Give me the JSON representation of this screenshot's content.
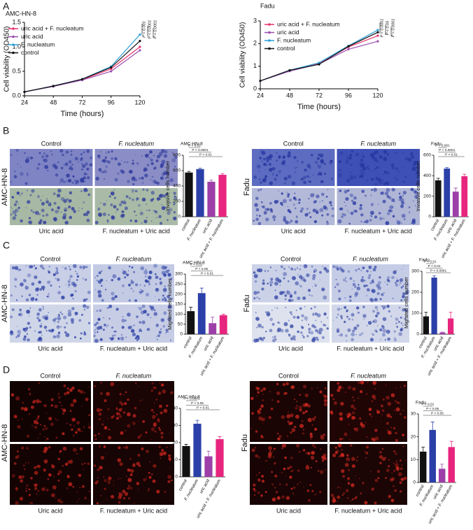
{
  "panel_labels": [
    "A",
    "B",
    "C",
    "D"
  ],
  "image_panels": [
    {
      "cell_line": "AMC-HN-8",
      "top": [
        "Control",
        "F. nucleatum"
      ],
      "bottom": [
        "Uric acid",
        "F. nucleatum + Uric acid"
      ]
    },
    {
      "cell_line": "Fadu",
      "top": [
        "Control",
        "F. nucleatum"
      ],
      "bottom": [
        "Uric acid",
        "F. nucleatum + Uric acid"
      ]
    },
    {
      "cell_line": "AMC-HN-8",
      "top": [
        "Control",
        "F. nucleatum"
      ],
      "bottom": [
        "Uric acid",
        "F. nucleatum + Uric acid"
      ]
    },
    {
      "cell_line": "Fadu",
      "top": [
        "Control",
        "F. nucleatum"
      ],
      "bottom": [
        "Uric acid",
        "F. nucleatum + Uric acid"
      ]
    },
    {
      "cell_line": "AMC-HN-8",
      "top": [
        "Control",
        "F. nucleatum"
      ],
      "bottom": [
        "Uric acid",
        "F. nucleatum + Uric acid"
      ]
    },
    {
      "cell_line": "Fadu",
      "top": [
        "Control",
        "F. nucleatum"
      ],
      "bottom": [
        "Uric acid",
        "F. nucleatum + Uric acid"
      ]
    }
  ],
  "chart_data": [
    {
      "type": "line",
      "title": "AMC-HN-8",
      "y_label": "Cell viability (OD450)",
      "x_label": "Time (hours)",
      "x": [
        24,
        48,
        72,
        96,
        120
      ],
      "xlim": [
        24,
        120
      ],
      "xticks": [
        24,
        48,
        72,
        96,
        120
      ],
      "ylim": [
        0,
        1.5
      ],
      "yticks": [
        {
          "value": 0,
          "label": "0.0"
        },
        {
          "value": 0.5,
          "label": "0.5"
        },
        {
          "value": 1,
          "label": "1.0"
        },
        {
          "value": 1.5,
          "label": "1.5"
        }
      ],
      "series": [
        {
          "name": "uric acid + F. nucleatum",
          "color": "#e8336b",
          "values": [
            0.08,
            0.2,
            0.33,
            0.55,
            1.0
          ]
        },
        {
          "name": "uric acid",
          "color": "#9b4fb0",
          "values": [
            0.08,
            0.19,
            0.32,
            0.5,
            0.93
          ]
        },
        {
          "name": "F. nucleatum",
          "color": "#2a9fd6",
          "values": [
            0.08,
            0.2,
            0.34,
            0.6,
            1.25
          ]
        },
        {
          "name": "control",
          "color": "#111111",
          "values": [
            0.08,
            0.2,
            0.34,
            0.58,
            1.12
          ]
        }
      ],
      "annotations": [
        "P < 0.001",
        "P < 0.0001",
        "P < 0.0001"
      ]
    },
    {
      "type": "line",
      "title": "Fadu",
      "y_label": "Cell viability (OD450)",
      "x_label": "Time (hours)",
      "x": [
        24,
        48,
        72,
        96,
        120
      ],
      "xlim": [
        24,
        120
      ],
      "xticks": [
        24,
        48,
        72,
        96,
        120
      ],
      "ylim": [
        0,
        3
      ],
      "yticks": [
        0,
        1,
        2,
        3
      ],
      "series": [
        {
          "name": "uric acid + F. nucleatum",
          "color": "#e8336b",
          "values": [
            0.35,
            0.8,
            1.12,
            1.85,
            2.35
          ]
        },
        {
          "name": "uric acid",
          "color": "#9b4fb0",
          "values": [
            0.35,
            0.78,
            1.1,
            1.75,
            2.1
          ]
        },
        {
          "name": "F. nucleatum",
          "color": "#2a9fd6",
          "values": [
            0.35,
            0.82,
            1.15,
            1.9,
            2.6
          ]
        },
        {
          "name": "control",
          "color": "#111111",
          "values": [
            0.35,
            0.82,
            1.08,
            1.88,
            2.5
          ]
        }
      ],
      "annotations": [
        "P < 0.0001",
        "P < 0.05",
        "P < 0.0001"
      ]
    },
    {
      "type": "bar",
      "title": "AMC-HN-8",
      "y_label": "Invasive cells number",
      "categories": [
        "control",
        "F. nucleatum",
        "uric acid",
        "uric acid + F. nucleatum"
      ],
      "values": [
        575,
        620,
        455,
        545
      ],
      "errors": [
        15,
        12,
        20,
        15
      ],
      "colors": [
        "#111111",
        "#2b3fa8",
        "#9d3fa8",
        "#e7257e"
      ],
      "ylim": [
        0,
        800
      ],
      "yticks": [
        0,
        200,
        400,
        600,
        800
      ],
      "annotations": [
        "P < 0.01",
        "P < 0.0001",
        "P < 0.01"
      ]
    },
    {
      "type": "bar",
      "title": "Fadu",
      "y_label": "Invasive cells number",
      "categories": [
        "control",
        "F. nucleatum",
        "uric acid",
        "uric acid + F. nucleatum"
      ],
      "values": [
        355,
        470,
        245,
        395
      ],
      "errors": [
        20,
        10,
        35,
        20
      ],
      "colors": [
        "#111111",
        "#2b3fa8",
        "#9d3fa8",
        "#e7257e"
      ],
      "ylim": [
        0,
        600
      ],
      "yticks": [
        0,
        200,
        400,
        600
      ],
      "annotations": [
        "P < 0.001",
        "P < 0.0001",
        "P < 0.01"
      ]
    },
    {
      "type": "bar",
      "title": "AMC-HN-8",
      "y_label": "Migrated cells number",
      "categories": [
        "control",
        "F. nucleatum",
        "uric acid",
        "uric acid + F. nucleatum"
      ],
      "values": [
        115,
        205,
        55,
        95
      ],
      "errors": [
        20,
        25,
        30,
        5
      ],
      "colors": [
        "#111111",
        "#2b3fa8",
        "#9d3fa8",
        "#e7257e"
      ],
      "ylim": [
        0,
        300
      ],
      "yticks": [
        0,
        50,
        100,
        150,
        200,
        250,
        300
      ],
      "annotations": [
        "P < 0.01",
        "P < 0.05",
        "P < 0.01"
      ]
    },
    {
      "type": "bar",
      "title": "Fadu",
      "y_label": "Migrated cells number",
      "categories": [
        "control",
        "F. nucleatum",
        "uric acid",
        "uric acid + F. nucleatum"
      ],
      "values": [
        85,
        270,
        8,
        75
      ],
      "errors": [
        20,
        8,
        2,
        30
      ],
      "colors": [
        "#111111",
        "#2b3fa8",
        "#9d3fa8",
        "#e7257e"
      ],
      "ylim": [
        0,
        300
      ],
      "yticks": [
        0,
        100,
        200,
        300
      ],
      "annotations": [
        "P < 0.01",
        "P < 0.01",
        "P < 0.0001"
      ]
    },
    {
      "type": "bar",
      "title": "AMC-HN-8",
      "categories": [
        "control",
        "F. nucleatum",
        "uric acid",
        "uric acid + F. nucleatum"
      ],
      "values": [
        18,
        31,
        12,
        22
      ],
      "errors": [
        1,
        2,
        3,
        1.5
      ],
      "colors": [
        "#111111",
        "#2b3fa8",
        "#9d3fa8",
        "#e7257e"
      ],
      "ylim": [
        0,
        40
      ],
      "yticks": [
        0,
        10,
        20,
        30,
        40
      ],
      "annotations": [
        "P < 0.0001",
        "P < 0.05",
        "P < 0.01"
      ]
    },
    {
      "type": "bar",
      "title": "Fadu",
      "categories": [
        "control",
        "F. nucleatum",
        "uric acid",
        "uric acid + F. nucleatum"
      ],
      "values": [
        13.5,
        23,
        6,
        15.5
      ],
      "errors": [
        2,
        3.5,
        2,
        2.5
      ],
      "colors": [
        "#111111",
        "#2b3fa8",
        "#9d3fa8",
        "#e7257e"
      ],
      "ylim": [
        0,
        30
      ],
      "yticks": [
        0,
        10,
        20,
        30
      ],
      "annotations": [
        "P < 0.01",
        "P < 0.05",
        "P < 0.05"
      ]
    }
  ]
}
